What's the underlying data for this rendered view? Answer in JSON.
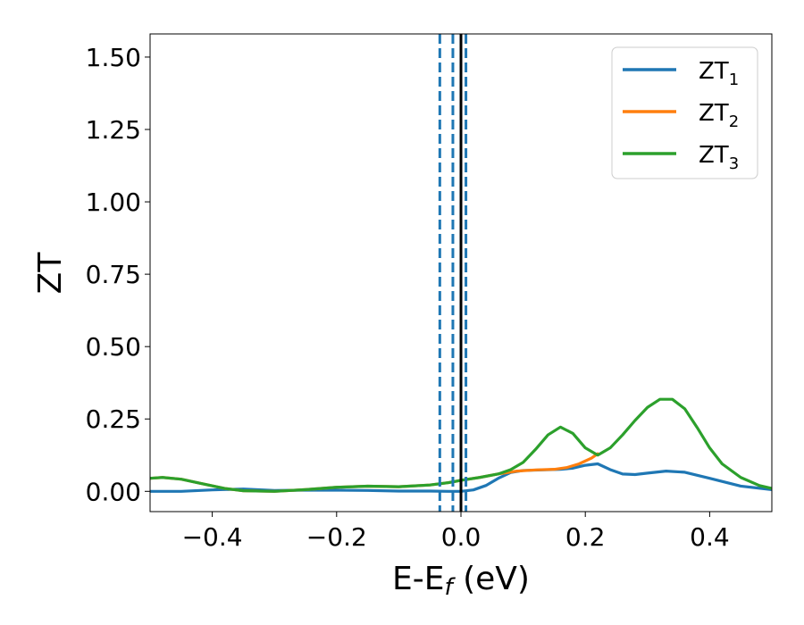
{
  "chart_data": {
    "type": "line",
    "title": "",
    "xlabel": "E-E_f (eV)",
    "ylabel": "ZT",
    "xlim": [
      -0.5,
      0.5
    ],
    "ylim": [
      -0.07,
      1.58
    ],
    "grid": false,
    "legend_position": "top-right",
    "x_ticks": [
      -0.4,
      -0.2,
      0.0,
      0.2,
      0.4
    ],
    "x_tick_labels": [
      "−0.4",
      "−0.2",
      "0.0",
      "0.2",
      "0.4"
    ],
    "y_ticks": [
      0.0,
      0.25,
      0.5,
      0.75,
      1.0,
      1.25,
      1.5
    ],
    "y_tick_labels": [
      "0.00",
      "0.25",
      "0.50",
      "0.75",
      "1.00",
      "1.25",
      "1.50"
    ],
    "vertical_lines": [
      {
        "x": -0.034,
        "style": "dashed",
        "color": "#1f77b4"
      },
      {
        "x": -0.013,
        "style": "dashed",
        "color": "#1f77b4"
      },
      {
        "x": 0.008,
        "style": "dashed",
        "color": "#1f77b4"
      },
      {
        "x": 0.0,
        "style": "solid",
        "color": "#000000"
      }
    ],
    "series": [
      {
        "name": "ZT1",
        "color": "#1f77b4",
        "points": [
          [
            -0.5,
            0.0
          ],
          [
            -0.45,
            0.0
          ],
          [
            -0.4,
            0.005
          ],
          [
            -0.35,
            0.008
          ],
          [
            -0.3,
            0.003
          ],
          [
            -0.25,
            0.004
          ],
          [
            -0.2,
            0.004
          ],
          [
            -0.15,
            0.003
          ],
          [
            -0.1,
            0.001
          ],
          [
            -0.05,
            0.001
          ],
          [
            -0.02,
            0.0
          ],
          [
            0.0,
            0.0
          ],
          [
            0.02,
            0.005
          ],
          [
            0.04,
            0.02
          ],
          [
            0.06,
            0.045
          ],
          [
            0.08,
            0.065
          ],
          [
            0.1,
            0.072
          ],
          [
            0.13,
            0.074
          ],
          [
            0.16,
            0.076
          ],
          [
            0.18,
            0.08
          ],
          [
            0.2,
            0.09
          ],
          [
            0.22,
            0.095
          ],
          [
            0.24,
            0.075
          ],
          [
            0.26,
            0.06
          ],
          [
            0.28,
            0.058
          ],
          [
            0.3,
            0.063
          ],
          [
            0.33,
            0.07
          ],
          [
            0.36,
            0.066
          ],
          [
            0.4,
            0.045
          ],
          [
            0.45,
            0.018
          ],
          [
            0.5,
            0.006
          ]
        ]
      },
      {
        "name": "ZT2",
        "color": "#ff7f0e",
        "points": [
          [
            -0.5,
            0.045
          ],
          [
            -0.48,
            0.048
          ],
          [
            -0.45,
            0.042
          ],
          [
            -0.42,
            0.028
          ],
          [
            -0.38,
            0.01
          ],
          [
            -0.35,
            0.002
          ],
          [
            -0.3,
            0.0
          ],
          [
            -0.25,
            0.006
          ],
          [
            -0.2,
            0.014
          ],
          [
            -0.15,
            0.018
          ],
          [
            -0.1,
            0.016
          ],
          [
            -0.05,
            0.022
          ],
          [
            -0.02,
            0.03
          ],
          [
            0.0,
            0.038
          ],
          [
            0.03,
            0.048
          ],
          [
            0.06,
            0.06
          ],
          [
            0.09,
            0.07
          ],
          [
            0.12,
            0.074
          ],
          [
            0.15,
            0.076
          ],
          [
            0.17,
            0.082
          ],
          [
            0.19,
            0.095
          ],
          [
            0.21,
            0.115
          ],
          [
            0.22,
            0.13
          ]
        ]
      },
      {
        "name": "ZT3",
        "color": "#2ca02c",
        "points": [
          [
            -0.5,
            0.045
          ],
          [
            -0.48,
            0.048
          ],
          [
            -0.45,
            0.042
          ],
          [
            -0.42,
            0.028
          ],
          [
            -0.38,
            0.01
          ],
          [
            -0.35,
            0.002
          ],
          [
            -0.3,
            0.0
          ],
          [
            -0.25,
            0.006
          ],
          [
            -0.2,
            0.014
          ],
          [
            -0.15,
            0.018
          ],
          [
            -0.1,
            0.016
          ],
          [
            -0.05,
            0.022
          ],
          [
            -0.02,
            0.03
          ],
          [
            0.0,
            0.038
          ],
          [
            0.03,
            0.048
          ],
          [
            0.06,
            0.06
          ],
          [
            0.08,
            0.075
          ],
          [
            0.1,
            0.1
          ],
          [
            0.12,
            0.145
          ],
          [
            0.14,
            0.195
          ],
          [
            0.16,
            0.222
          ],
          [
            0.18,
            0.2
          ],
          [
            0.2,
            0.15
          ],
          [
            0.22,
            0.125
          ],
          [
            0.24,
            0.15
          ],
          [
            0.26,
            0.195
          ],
          [
            0.28,
            0.245
          ],
          [
            0.3,
            0.29
          ],
          [
            0.32,
            0.318
          ],
          [
            0.34,
            0.318
          ],
          [
            0.36,
            0.285
          ],
          [
            0.38,
            0.22
          ],
          [
            0.4,
            0.15
          ],
          [
            0.42,
            0.095
          ],
          [
            0.45,
            0.048
          ],
          [
            0.48,
            0.02
          ],
          [
            0.5,
            0.01
          ]
        ]
      }
    ]
  },
  "legend": [
    {
      "base": "ZT",
      "sub": "1"
    },
    {
      "base": "ZT",
      "sub": "2"
    },
    {
      "base": "ZT",
      "sub": "3"
    }
  ]
}
